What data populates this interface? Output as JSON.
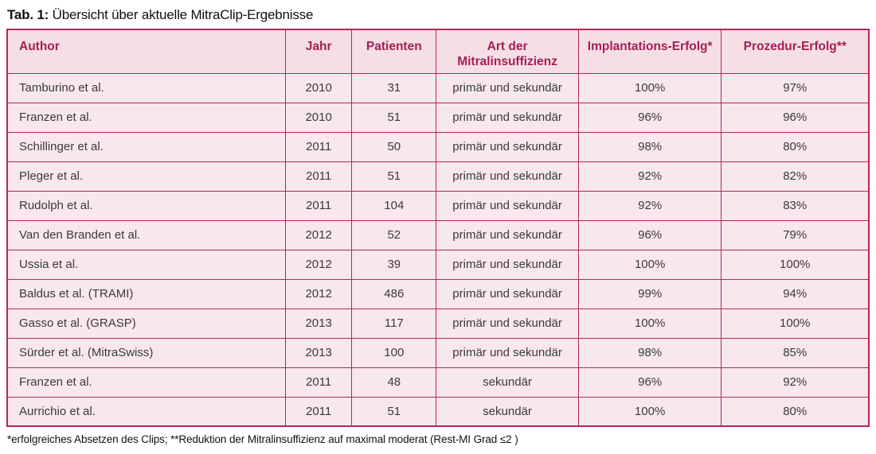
{
  "title": {
    "prefix": "Tab. 1:",
    "text": " Übersicht über aktuelle MitraClip-Ergebnisse"
  },
  "colors": {
    "border": "#b5245e",
    "header_bg": "#f6dfe4",
    "row_bg": "#f8e8eb",
    "header_text": "#a41d58",
    "body_text": "#3a3a3a"
  },
  "table": {
    "columns": [
      {
        "key": "author",
        "label": "Author"
      },
      {
        "key": "jahr",
        "label": "Jahr"
      },
      {
        "key": "patienten",
        "label": "Patienten"
      },
      {
        "key": "art",
        "label": "Art der Mitralinsuffizienz"
      },
      {
        "key": "implantation",
        "label": "Implantations-Erfolg*"
      },
      {
        "key": "prozedur",
        "label": "Prozedur-Erfolg**"
      }
    ],
    "rows": [
      [
        "Tamburino et al.",
        "2010",
        "31",
        "primär und sekundär",
        "100%",
        "97%"
      ],
      [
        "Franzen et al.",
        "2010",
        "51",
        "primär und sekundär",
        "96%",
        "96%"
      ],
      [
        "Schillinger et al.",
        "2011",
        "50",
        "primär und sekundär",
        "98%",
        "80%"
      ],
      [
        "Pleger et al.",
        "2011",
        "51",
        "primär und sekundär",
        "92%",
        "82%"
      ],
      [
        "Rudolph et al.",
        "2011",
        "104",
        "primär und sekundär",
        "92%",
        "83%"
      ],
      [
        "Van den Branden et al.",
        "2012",
        "52",
        "primär und sekundär",
        "96%",
        "79%"
      ],
      [
        "Ussia et al.",
        "2012",
        "39",
        "primär und sekundär",
        "100%",
        "100%"
      ],
      [
        "Baldus et al. (TRAMI)",
        "2012",
        "486",
        "primär und sekundär",
        "99%",
        "94%"
      ],
      [
        "Gasso et al. (GRASP)",
        "2013",
        "117",
        "primär und sekundär",
        "100%",
        "100%"
      ],
      [
        "Sürder et al. (MitraSwiss)",
        "2013",
        "100",
        "primär und sekundär",
        "98%",
        "85%"
      ],
      [
        "Franzen et al.",
        "2011",
        "48",
        "sekundär",
        "96%",
        "92%"
      ],
      [
        "Aurrichio et al.",
        "2011",
        "51",
        "sekundär",
        "100%",
        "80%"
      ]
    ]
  },
  "footnote": "*erfolgreiches Absetzen des Clips; **Reduktion der Mitralinsuffizienz auf maximal moderat (Rest-MI Grad ≤2 )"
}
